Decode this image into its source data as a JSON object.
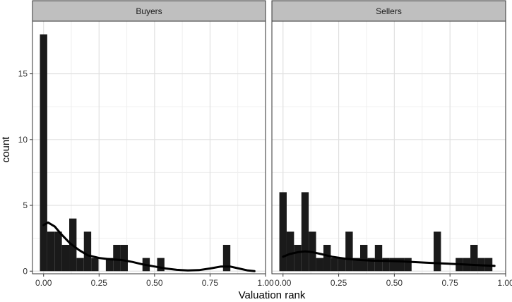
{
  "chart_data": {
    "type": "bar",
    "subtype": "histogram-with-density",
    "facets": [
      "Buyers",
      "Sellers"
    ],
    "xlabel": "Valuation rank",
    "ylabel": "count",
    "xlim": [
      -0.05,
      1.0
    ],
    "ylim": [
      -0.2,
      19.0
    ],
    "x_ticks": [
      0.0,
      0.25,
      0.5,
      0.75,
      1.0
    ],
    "x_tick_labels": [
      "0.00",
      "0.25",
      "0.50",
      "0.75",
      "1.00"
    ],
    "y_ticks": [
      0,
      5,
      10,
      15
    ],
    "y_tick_labels": [
      "0",
      "5",
      "10",
      "15"
    ],
    "grid": true,
    "bin_width": 0.033,
    "panels": [
      {
        "name": "Buyers",
        "bins": [
          {
            "x": 0.0,
            "count": 18
          },
          {
            "x": 0.033,
            "count": 3
          },
          {
            "x": 0.066,
            "count": 3
          },
          {
            "x": 0.099,
            "count": 2
          },
          {
            "x": 0.132,
            "count": 4
          },
          {
            "x": 0.165,
            "count": 1
          },
          {
            "x": 0.198,
            "count": 3
          },
          {
            "x": 0.231,
            "count": 1
          },
          {
            "x": 0.264,
            "count": 0
          },
          {
            "x": 0.297,
            "count": 1
          },
          {
            "x": 0.33,
            "count": 2
          },
          {
            "x": 0.363,
            "count": 2
          },
          {
            "x": 0.396,
            "count": 0
          },
          {
            "x": 0.429,
            "count": 0
          },
          {
            "x": 0.462,
            "count": 1
          },
          {
            "x": 0.495,
            "count": 0
          },
          {
            "x": 0.528,
            "count": 1
          },
          {
            "x": 0.825,
            "count": 2
          }
        ],
        "density": [
          {
            "x": 0.0,
            "y": 3.5
          },
          {
            "x": 0.02,
            "y": 3.7
          },
          {
            "x": 0.05,
            "y": 3.4
          },
          {
            "x": 0.08,
            "y": 2.8
          },
          {
            "x": 0.12,
            "y": 2.1
          },
          {
            "x": 0.16,
            "y": 1.6
          },
          {
            "x": 0.2,
            "y": 1.2
          },
          {
            "x": 0.25,
            "y": 1.0
          },
          {
            "x": 0.3,
            "y": 0.9
          },
          {
            "x": 0.35,
            "y": 0.85
          },
          {
            "x": 0.4,
            "y": 0.7
          },
          {
            "x": 0.45,
            "y": 0.5
          },
          {
            "x": 0.5,
            "y": 0.35
          },
          {
            "x": 0.55,
            "y": 0.2
          },
          {
            "x": 0.6,
            "y": 0.1
          },
          {
            "x": 0.65,
            "y": 0.05
          },
          {
            "x": 0.7,
            "y": 0.08
          },
          {
            "x": 0.75,
            "y": 0.2
          },
          {
            "x": 0.8,
            "y": 0.35
          },
          {
            "x": 0.84,
            "y": 0.35
          },
          {
            "x": 0.88,
            "y": 0.2
          },
          {
            "x": 0.92,
            "y": 0.05
          },
          {
            "x": 0.95,
            "y": 0.0
          }
        ]
      },
      {
        "name": "Sellers",
        "bins": [
          {
            "x": 0.0,
            "count": 6
          },
          {
            "x": 0.033,
            "count": 3
          },
          {
            "x": 0.066,
            "count": 2
          },
          {
            "x": 0.099,
            "count": 6
          },
          {
            "x": 0.132,
            "count": 3
          },
          {
            "x": 0.165,
            "count": 1
          },
          {
            "x": 0.198,
            "count": 2
          },
          {
            "x": 0.231,
            "count": 1
          },
          {
            "x": 0.264,
            "count": 1
          },
          {
            "x": 0.297,
            "count": 3
          },
          {
            "x": 0.33,
            "count": 1
          },
          {
            "x": 0.363,
            "count": 2
          },
          {
            "x": 0.396,
            "count": 1
          },
          {
            "x": 0.429,
            "count": 2
          },
          {
            "x": 0.462,
            "count": 1
          },
          {
            "x": 0.495,
            "count": 1
          },
          {
            "x": 0.528,
            "count": 1
          },
          {
            "x": 0.561,
            "count": 1
          },
          {
            "x": 0.594,
            "count": 0
          },
          {
            "x": 0.627,
            "count": 0
          },
          {
            "x": 0.66,
            "count": 0
          },
          {
            "x": 0.693,
            "count": 3
          },
          {
            "x": 0.726,
            "count": 0
          },
          {
            "x": 0.759,
            "count": 0
          },
          {
            "x": 0.792,
            "count": 1
          },
          {
            "x": 0.825,
            "count": 1
          },
          {
            "x": 0.858,
            "count": 2
          },
          {
            "x": 0.891,
            "count": 1
          },
          {
            "x": 0.924,
            "count": 1
          }
        ],
        "density": [
          {
            "x": 0.0,
            "y": 1.1
          },
          {
            "x": 0.03,
            "y": 1.3
          },
          {
            "x": 0.07,
            "y": 1.45
          },
          {
            "x": 0.1,
            "y": 1.5
          },
          {
            "x": 0.13,
            "y": 1.45
          },
          {
            "x": 0.17,
            "y": 1.3
          },
          {
            "x": 0.22,
            "y": 1.1
          },
          {
            "x": 0.28,
            "y": 0.95
          },
          {
            "x": 0.34,
            "y": 0.85
          },
          {
            "x": 0.4,
            "y": 0.8
          },
          {
            "x": 0.46,
            "y": 0.78
          },
          {
            "x": 0.52,
            "y": 0.75
          },
          {
            "x": 0.58,
            "y": 0.7
          },
          {
            "x": 0.64,
            "y": 0.65
          },
          {
            "x": 0.7,
            "y": 0.6
          },
          {
            "x": 0.76,
            "y": 0.55
          },
          {
            "x": 0.82,
            "y": 0.5
          },
          {
            "x": 0.88,
            "y": 0.45
          },
          {
            "x": 0.95,
            "y": 0.4
          }
        ]
      }
    ],
    "colors": {
      "bar": "#1a1a1a",
      "density": "#000000",
      "strip_fill": "#bfbfbf",
      "grid": "#e0e0e0",
      "panel_border": "#333333"
    }
  }
}
